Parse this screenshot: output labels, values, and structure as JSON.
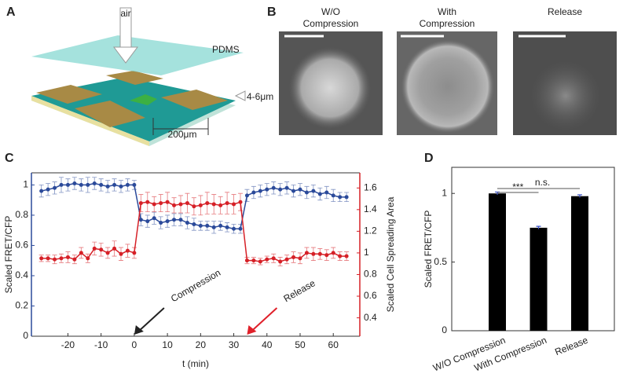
{
  "panels": {
    "a": {
      "label": "A",
      "air": "air",
      "pdms": "PDMS",
      "gap": "4-6μm",
      "width": "200μm"
    },
    "b": {
      "label": "B",
      "titles": [
        [
          "W/O",
          "Compression"
        ],
        [
          "With",
          "Compression"
        ],
        [
          "Release"
        ]
      ]
    },
    "c": {
      "label": "C"
    },
    "d": {
      "label": "D"
    }
  },
  "chart_data": [
    {
      "type": "line",
      "xlabel": "t (min)",
      "ylabel": "Scaled FRET/CFP",
      "y2label": "Scaled Cell Spreading Area",
      "x": [
        -28,
        -26,
        -24,
        -22,
        -20,
        -18,
        -16,
        -14,
        -12,
        -10,
        -8,
        -6,
        -4,
        -2,
        0,
        2,
        4,
        6,
        8,
        10,
        12,
        14,
        16,
        18,
        20,
        22,
        24,
        26,
        28,
        30,
        32,
        34,
        36,
        38,
        40,
        42,
        44,
        46,
        48,
        50,
        52,
        54,
        56,
        58,
        60,
        62,
        64
      ],
      "xlim": [
        -31,
        68
      ],
      "xticks": [
        -20,
        -10,
        0,
        10,
        20,
        30,
        40,
        50,
        60
      ],
      "ylim": [
        0,
        1.08
      ],
      "yticks": [
        0,
        0.2,
        0.4,
        0.6,
        0.8,
        1
      ],
      "y2lim": [
        0.23,
        1.74
      ],
      "y2ticks": [
        0.4,
        0.6,
        0.8,
        1,
        1.2,
        1.4,
        1.6
      ],
      "series": [
        {
          "color": "#2b4a9a",
          "values": [
            0.96,
            0.97,
            0.98,
            1.0,
            1.0,
            1.01,
            1.0,
            1.0,
            1.01,
            1.0,
            0.99,
            1.0,
            0.99,
            1.0,
            1.0,
            0.77,
            0.76,
            0.78,
            0.75,
            0.76,
            0.77,
            0.77,
            0.75,
            0.74,
            0.73,
            0.73,
            0.72,
            0.73,
            0.72,
            0.71,
            0.71,
            0.93,
            0.95,
            0.96,
            0.97,
            0.98,
            0.97,
            0.98,
            0.96,
            0.97,
            0.95,
            0.96,
            0.94,
            0.95,
            0.93,
            0.92,
            0.92
          ],
          "errors": [
            0.04,
            0.04,
            0.04,
            0.05,
            0.04,
            0.04,
            0.04,
            0.05,
            0.04,
            0.04,
            0.04,
            0.04,
            0.04,
            0.04,
            0.03,
            0.04,
            0.04,
            0.04,
            0.04,
            0.04,
            0.04,
            0.04,
            0.04,
            0.04,
            0.03,
            0.03,
            0.04,
            0.03,
            0.03,
            0.03,
            0.03,
            0.04,
            0.04,
            0.04,
            0.04,
            0.04,
            0.04,
            0.04,
            0.04,
            0.04,
            0.04,
            0.04,
            0.04,
            0.04,
            0.04,
            0.03,
            0.03
          ]
        },
        {
          "color": "#d62027",
          "axis": "y2",
          "values": [
            0.95,
            0.95,
            0.94,
            0.95,
            0.96,
            0.94,
            1.0,
            0.95,
            1.04,
            1.03,
            1.0,
            1.04,
            0.99,
            1.02,
            1.0,
            1.46,
            1.47,
            1.45,
            1.46,
            1.47,
            1.44,
            1.45,
            1.46,
            1.43,
            1.44,
            1.46,
            1.45,
            1.44,
            1.46,
            1.45,
            1.47,
            0.93,
            0.93,
            0.92,
            0.94,
            0.95,
            0.92,
            0.94,
            0.96,
            0.95,
            1.0,
            0.99,
            0.99,
            0.98,
            1.0,
            0.97,
            0.97
          ],
          "errors": [
            0.03,
            0.03,
            0.04,
            0.04,
            0.05,
            0.04,
            0.05,
            0.04,
            0.06,
            0.06,
            0.05,
            0.07,
            0.06,
            0.06,
            0.05,
            0.08,
            0.09,
            0.07,
            0.08,
            0.09,
            0.07,
            0.08,
            0.09,
            0.08,
            0.09,
            0.1,
            0.09,
            0.08,
            0.1,
            0.09,
            0.08,
            0.03,
            0.03,
            0.03,
            0.03,
            0.04,
            0.04,
            0.04,
            0.05,
            0.05,
            0.05,
            0.06,
            0.05,
            0.05,
            0.05,
            0.04,
            0.04
          ]
        }
      ],
      "annotations": [
        {
          "text": "Compression",
          "x": 0,
          "color": "#222222"
        },
        {
          "text": "Release",
          "x": 34,
          "color": "#e0202a"
        }
      ]
    },
    {
      "type": "bar",
      "ylabel": "Scaled FRET/CFP",
      "categories": [
        "W/O Compression",
        "With Compression",
        "Release"
      ],
      "values": [
        1,
        0.75,
        0.98
      ],
      "errors": [
        0.01,
        0.01,
        0.01
      ],
      "color": "#000000",
      "error_color": "#3a50c8",
      "ylim": [
        0,
        1.19
      ],
      "yticks": [
        0,
        0.5,
        1
      ],
      "significance": [
        "***",
        "n.s."
      ]
    }
  ]
}
